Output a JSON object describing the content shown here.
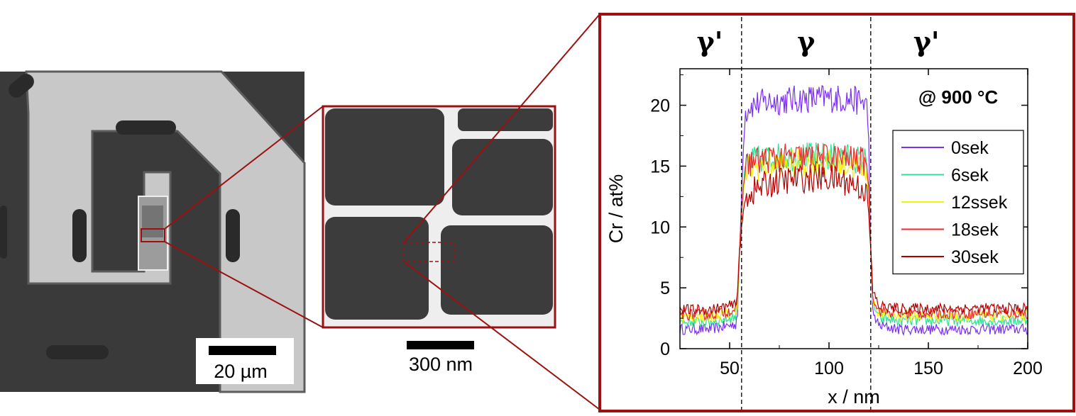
{
  "panels": {
    "sem": {
      "scalebar_label": "20 µm",
      "colors": {
        "dark": "#3a3a3a",
        "light": "#c7c7c7",
        "frame": "#9b1111"
      }
    },
    "tem": {
      "scalebar_label": "300 nm",
      "colors": {
        "precipitate": "#3c3c3c",
        "matrix": "#eeeeee",
        "frame": "#9b1111"
      }
    }
  },
  "chart_data": {
    "type": "line",
    "title": "",
    "annotation": "@ 900 °C",
    "xlabel": "x / nm",
    "ylabel": "Cr / at%",
    "xlim": [
      25,
      200
    ],
    "ylim": [
      0,
      23
    ],
    "xticks": [
      50,
      100,
      150,
      200
    ],
    "yticks": [
      0,
      5,
      10,
      15,
      20
    ],
    "phase_boundaries": [
      56,
      121
    ],
    "phase_labels": [
      {
        "text": "γ'",
        "x": 40
      },
      {
        "text": "γ",
        "x": 88.5
      },
      {
        "text": "γ'",
        "x": 149
      }
    ],
    "legend_position": "right",
    "grid": false,
    "series": [
      {
        "name": "0sek",
        "color": "#7b2ff2",
        "x": [
          25,
          40,
          53,
          54,
          55,
          57,
          58,
          60,
          70,
          85,
          100,
          110,
          119,
          120,
          121,
          122,
          125,
          135,
          150,
          175,
          200
        ],
        "y": [
          1.6,
          1.6,
          2.0,
          3.0,
          8.0,
          17.0,
          19.5,
          20.0,
          20.3,
          20.5,
          20.6,
          20.5,
          20.2,
          17.0,
          8.0,
          3.0,
          1.9,
          1.6,
          1.6,
          1.6,
          1.6
        ]
      },
      {
        "name": "6sek",
        "color": "#2ee08f",
        "x": [
          25,
          40,
          53,
          54,
          55,
          57,
          58,
          60,
          70,
          85,
          100,
          110,
          119,
          120,
          121,
          122,
          125,
          135,
          150,
          175,
          200
        ],
        "y": [
          2.2,
          2.2,
          2.6,
          3.6,
          8.2,
          13.5,
          15.0,
          15.4,
          15.7,
          15.8,
          15.8,
          15.7,
          15.4,
          13.0,
          8.0,
          3.8,
          2.5,
          2.3,
          2.3,
          2.3,
          2.3
        ]
      },
      {
        "name": "12ssek",
        "color": "#f2f20a",
        "x": [
          25,
          40,
          53,
          54,
          55,
          57,
          58,
          60,
          70,
          85,
          100,
          110,
          119,
          120,
          121,
          122,
          125,
          135,
          150,
          175,
          200
        ],
        "y": [
          2.6,
          2.6,
          3.0,
          4.0,
          8.3,
          13.0,
          14.4,
          14.8,
          15.1,
          15.2,
          15.2,
          15.1,
          14.8,
          12.5,
          8.2,
          4.2,
          2.9,
          2.7,
          2.7,
          2.7,
          2.7
        ]
      },
      {
        "name": "18sek",
        "color": "#e82a2a",
        "x": [
          25,
          40,
          53,
          54,
          55,
          57,
          58,
          60,
          70,
          85,
          100,
          110,
          119,
          120,
          121,
          122,
          125,
          135,
          150,
          175,
          200
        ],
        "y": [
          2.8,
          2.8,
          3.2,
          4.3,
          8.5,
          13.5,
          14.9,
          15.3,
          15.6,
          15.7,
          15.7,
          15.6,
          15.3,
          13.0,
          8.4,
          4.4,
          3.1,
          2.9,
          2.9,
          2.9,
          2.9
        ]
      },
      {
        "name": "30sek",
        "color": "#b00000",
        "x": [
          25,
          40,
          53,
          54,
          55,
          57,
          58,
          60,
          70,
          85,
          100,
          110,
          119,
          120,
          121,
          122,
          125,
          135,
          150,
          175,
          200
        ],
        "y": [
          3.2,
          3.2,
          3.6,
          4.6,
          8.0,
          11.3,
          12.3,
          12.8,
          13.6,
          14.0,
          14.0,
          13.7,
          13.0,
          11.0,
          8.0,
          4.8,
          3.5,
          3.3,
          3.3,
          3.3,
          3.3
        ]
      }
    ]
  }
}
